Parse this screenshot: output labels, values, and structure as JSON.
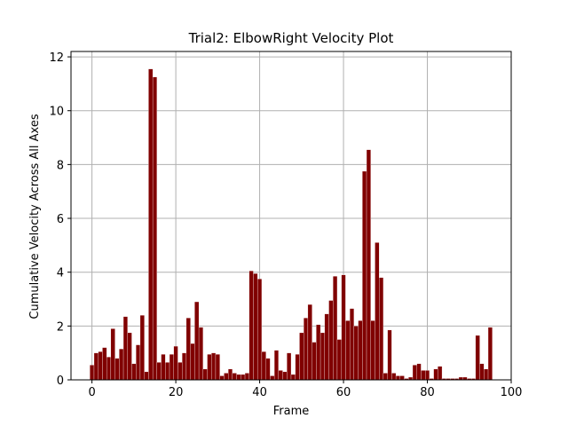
{
  "chart_data": {
    "type": "bar",
    "title": "Trial2: ElbowRight Velocity Plot",
    "xlabel": "Frame",
    "ylabel": "Cumulative Velocity Across All Axes",
    "xlim": [
      -5,
      100
    ],
    "ylim": [
      0,
      12.2
    ],
    "xticks": [
      0,
      20,
      40,
      60,
      80,
      100
    ],
    "yticks": [
      0,
      2,
      4,
      6,
      8,
      10,
      12
    ],
    "grid": true,
    "bar_color": "#800000",
    "bar_width": 1,
    "x": [
      0,
      1,
      2,
      3,
      4,
      5,
      6,
      7,
      8,
      9,
      10,
      11,
      12,
      13,
      14,
      15,
      16,
      17,
      18,
      19,
      20,
      21,
      22,
      23,
      24,
      25,
      26,
      27,
      28,
      29,
      30,
      31,
      32,
      33,
      34,
      35,
      36,
      37,
      38,
      39,
      40,
      41,
      42,
      43,
      44,
      45,
      46,
      47,
      48,
      49,
      50,
      51,
      52,
      53,
      54,
      55,
      56,
      57,
      58,
      59,
      60,
      61,
      62,
      63,
      64,
      65,
      66,
      67,
      68,
      69,
      70,
      71,
      72,
      73,
      74,
      75,
      76,
      77,
      78,
      79,
      80,
      81,
      82,
      83,
      84,
      85,
      86,
      87,
      88,
      89,
      90,
      91,
      92,
      93,
      94,
      95
    ],
    "values": [
      0.55,
      1.0,
      1.05,
      1.2,
      0.85,
      1.9,
      0.8,
      1.15,
      2.35,
      1.75,
      0.6,
      1.3,
      2.4,
      0.3,
      11.55,
      11.25,
      0.65,
      0.95,
      0.65,
      0.95,
      1.25,
      0.65,
      1.0,
      2.3,
      1.35,
      2.9,
      1.95,
      0.4,
      0.95,
      1.0,
      0.95,
      0.15,
      0.25,
      0.4,
      0.25,
      0.2,
      0.2,
      0.25,
      4.05,
      3.95,
      3.75,
      1.05,
      0.8,
      0.15,
      1.1,
      0.35,
      0.3,
      1.0,
      0.2,
      0.95,
      1.75,
      2.3,
      2.8,
      1.4,
      2.05,
      1.75,
      2.45,
      2.95,
      3.85,
      1.5,
      3.9,
      2.2,
      2.65,
      2.0,
      2.2,
      7.75,
      8.55,
      2.2,
      5.1,
      3.8,
      0.25,
      1.85,
      0.25,
      0.15,
      0.15,
      0.05,
      0.1,
      0.55,
      0.6,
      0.35,
      0.35,
      0.05,
      0.4,
      0.5,
      0.05,
      0.05,
      0.05,
      0.05,
      0.1,
      0.1,
      0.05,
      0.05,
      1.65,
      0.6,
      0.4,
      1.95
    ]
  }
}
